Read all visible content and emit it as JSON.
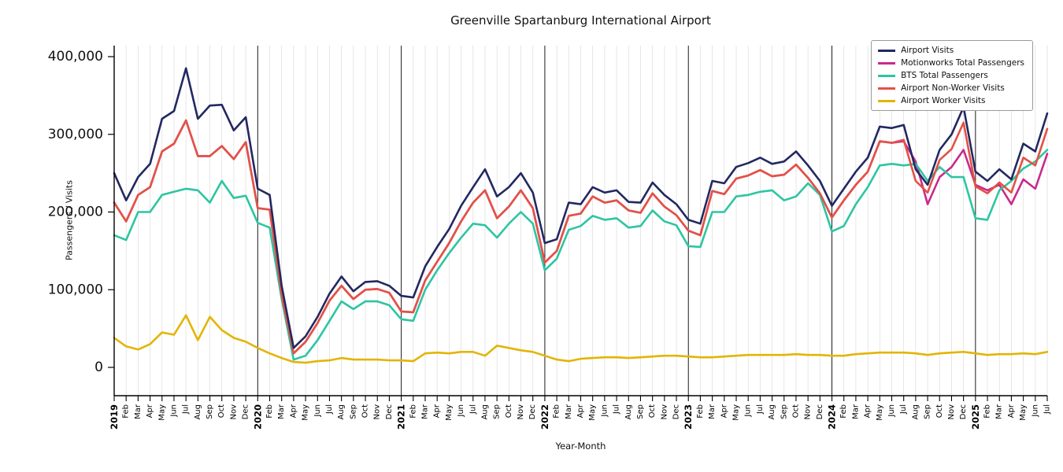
{
  "chart_data": {
    "type": "line",
    "title": "Greenville Spartanburg International Airport",
    "xlabel": "Year-Month",
    "ylabel": "Passengers / Visits",
    "ylim": [
      0,
      400000
    ],
    "grid": "vertical-monthly",
    "legend_position": "upper right",
    "y_ticks": [
      {
        "value": 0,
        "label": "0"
      },
      {
        "value": 100000,
        "label": "100,000"
      },
      {
        "value": 200000,
        "label": "200,000"
      },
      {
        "value": 300000,
        "label": "300,000"
      },
      {
        "value": 400000,
        "label": "400,000"
      }
    ],
    "x_tick_labels": [
      "2019",
      "Feb",
      "Mar",
      "Apr",
      "May",
      "Jun",
      "Jul",
      "Aug",
      "Sep",
      "Oct",
      "Nov",
      "Dec",
      "2020",
      "Feb",
      "Mar",
      "Apr",
      "May",
      "Jun",
      "Jul",
      "Aug",
      "Sep",
      "Oct",
      "Nov",
      "Dec",
      "2021",
      "Feb",
      "Mar",
      "Apr",
      "May",
      "Jun",
      "Jul",
      "Aug",
      "Sep",
      "Oct",
      "Nov",
      "Dec",
      "2022",
      "Feb",
      "Mar",
      "Apr",
      "May",
      "Jun",
      "Jul",
      "Aug",
      "Sep",
      "Oct",
      "Nov",
      "Dec",
      "2023",
      "Feb",
      "Mar",
      "Apr",
      "May",
      "Jun",
      "Jul",
      "Aug",
      "Sep",
      "Oct",
      "Nov",
      "Dec",
      "2024",
      "Feb",
      "Mar",
      "Apr",
      "May",
      "Jun",
      "Jul",
      "Aug",
      "Sep",
      "Oct",
      "Nov",
      "Dec",
      "2025",
      "Feb",
      "Mar",
      "Apr",
      "May",
      "Jun",
      "Jul"
    ],
    "draw_order": [
      1,
      2,
      3,
      4,
      0
    ],
    "series": [
      {
        "name": "Airport Visits",
        "color": "#232861",
        "values": [
          250000,
          215000,
          245000,
          262000,
          320000,
          330000,
          385000,
          320000,
          337000,
          338000,
          305000,
          322000,
          230000,
          222000,
          105000,
          25000,
          40000,
          65000,
          95000,
          117000,
          98000,
          110000,
          111000,
          105000,
          92000,
          90000,
          130000,
          155000,
          178000,
          208000,
          232000,
          255000,
          220000,
          232000,
          250000,
          225000,
          160000,
          165000,
          212000,
          210000,
          232000,
          225000,
          228000,
          213000,
          212000,
          238000,
          222000,
          210000,
          190000,
          185000,
          240000,
          237000,
          258000,
          263000,
          270000,
          262000,
          265000,
          278000,
          260000,
          240000,
          208000,
          230000,
          252000,
          270000,
          310000,
          308000,
          312000,
          255000,
          235000,
          280000,
          300000,
          335000,
          252000,
          240000,
          255000,
          242000,
          288000,
          278000,
          327000
        ]
      },
      {
        "name": "Motionworks Total Passengers",
        "color": "#c92a8d",
        "values": [
          212000,
          188000,
          222000,
          232000,
          278000,
          288000,
          318000,
          272000,
          272000,
          285000,
          268000,
          290000,
          205000,
          203000,
          93000,
          18000,
          33000,
          57000,
          86000,
          105000,
          88000,
          100000,
          101000,
          96000,
          72000,
          71000,
          112000,
          136000,
          160000,
          188000,
          212000,
          228000,
          192000,
          207000,
          228000,
          205000,
          135000,
          150000,
          195000,
          198000,
          220000,
          212000,
          215000,
          202000,
          199000,
          224000,
          207000,
          196000,
          176000,
          170000,
          227000,
          223000,
          243000,
          247000,
          254000,
          246000,
          248000,
          261000,
          244000,
          224000,
          193000,
          215000,
          235000,
          252000,
          291000,
          289000,
          291000,
          265000,
          210000,
          245000,
          258000,
          280000,
          235000,
          228000,
          235000,
          210000,
          242000,
          230000,
          275000
        ]
      },
      {
        "name": "BTS Total Passengers",
        "color": "#2dc5a2",
        "values": [
          170000,
          164000,
          200000,
          200000,
          222000,
          226000,
          230000,
          228000,
          212000,
          240000,
          218000,
          221000,
          186000,
          180000,
          88000,
          10000,
          15000,
          35000,
          60000,
          85000,
          75000,
          85000,
          85000,
          80000,
          62000,
          60000,
          100000,
          125000,
          147000,
          167000,
          185000,
          183000,
          167000,
          185000,
          200000,
          185000,
          125000,
          140000,
          177000,
          182000,
          195000,
          190000,
          192000,
          180000,
          182000,
          202000,
          188000,
          183000,
          156000,
          155000,
          200000,
          200000,
          220000,
          222000,
          226000,
          228000,
          215000,
          220000,
          237000,
          222000,
          175000,
          182000,
          210000,
          232000,
          260000,
          262000,
          260000,
          262000,
          240000,
          258000,
          245000,
          245000,
          192000,
          190000,
          228000,
          240000,
          256000,
          265000,
          280000
        ]
      },
      {
        "name": "Airport Non-Worker Visits",
        "color": "#e35244",
        "values": [
          212000,
          188000,
          222000,
          232000,
          278000,
          288000,
          318000,
          272000,
          272000,
          285000,
          268000,
          290000,
          205000,
          203000,
          93000,
          18000,
          33000,
          57000,
          86000,
          105000,
          88000,
          100000,
          101000,
          96000,
          72000,
          71000,
          112000,
          136000,
          160000,
          188000,
          212000,
          228000,
          192000,
          207000,
          228000,
          205000,
          135000,
          150000,
          195000,
          198000,
          220000,
          212000,
          215000,
          202000,
          199000,
          224000,
          207000,
          196000,
          176000,
          170000,
          227000,
          223000,
          243000,
          247000,
          254000,
          246000,
          248000,
          261000,
          244000,
          224000,
          193000,
          215000,
          235000,
          252000,
          291000,
          289000,
          293000,
          240000,
          225000,
          267000,
          281000,
          315000,
          233000,
          224000,
          238000,
          225000,
          270000,
          260000,
          307000
        ]
      },
      {
        "name": "Airport Worker Visits",
        "color": "#e2b505",
        "values": [
          38000,
          27000,
          23000,
          30000,
          45000,
          42000,
          67000,
          35000,
          65000,
          48000,
          38000,
          33000,
          25000,
          18000,
          12000,
          7000,
          6000,
          8000,
          9000,
          12000,
          10000,
          10000,
          10000,
          9000,
          9000,
          8000,
          18000,
          19000,
          18000,
          20000,
          20000,
          15000,
          28000,
          25000,
          22000,
          20000,
          15000,
          10000,
          8000,
          11000,
          12000,
          13000,
          13000,
          12000,
          13000,
          14000,
          15000,
          15000,
          14000,
          13000,
          13000,
          14000,
          15000,
          16000,
          16000,
          16000,
          16000,
          17000,
          16000,
          16000,
          15000,
          15000,
          17000,
          18000,
          19000,
          19000,
          19000,
          18000,
          16000,
          18000,
          19000,
          20000,
          18000,
          16000,
          17000,
          17000,
          18000,
          17000,
          20000
        ]
      }
    ]
  }
}
